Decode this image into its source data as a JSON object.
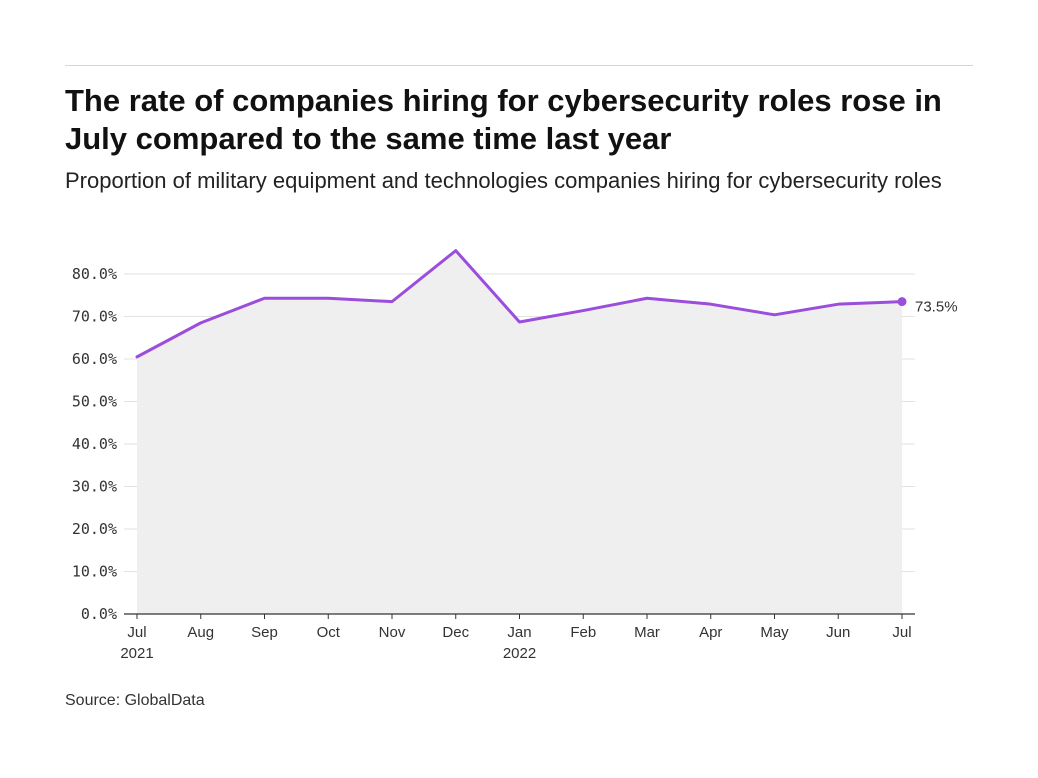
{
  "title": "The rate of companies hiring for cybersecurity roles rose in July compared to the same time last year",
  "subtitle": "Proportion of military equipment and technologies companies hiring for cybersecurity roles",
  "source": "Source: GlobalData",
  "colors": {
    "line": "#9b4ddb",
    "area": "#efefef",
    "grid": "#e2e2e2",
    "axis": "#333333"
  },
  "chart_data": {
    "type": "area",
    "x": [
      "Jul 2021",
      "Aug 2021",
      "Sep 2021",
      "Oct 2021",
      "Nov 2021",
      "Dec 2021",
      "Jan 2022",
      "Feb 2022",
      "Mar 2022",
      "Apr 2022",
      "May 2022",
      "Jun 2022",
      "Jul 2022"
    ],
    "tick_labels": [
      {
        "month": "Jul",
        "year": "2021"
      },
      {
        "month": "Aug",
        "year": ""
      },
      {
        "month": "Sep",
        "year": ""
      },
      {
        "month": "Oct",
        "year": ""
      },
      {
        "month": "Nov",
        "year": ""
      },
      {
        "month": "Dec",
        "year": ""
      },
      {
        "month": "Jan",
        "year": "2022"
      },
      {
        "month": "Feb",
        "year": ""
      },
      {
        "month": "Mar",
        "year": ""
      },
      {
        "month": "Apr",
        "year": ""
      },
      {
        "month": "May",
        "year": ""
      },
      {
        "month": "Jun",
        "year": ""
      },
      {
        "month": "Jul",
        "year": ""
      }
    ],
    "values": [
      60.5,
      68.5,
      74.3,
      74.3,
      73.5,
      85.5,
      68.7,
      71.4,
      74.3,
      72.9,
      70.4,
      72.9,
      73.5
    ],
    "yticks": [
      "0.0%",
      "10.0%",
      "20.0%",
      "30.0%",
      "40.0%",
      "50.0%",
      "60.0%",
      "70.0%",
      "80.0%"
    ],
    "ylim": [
      0,
      80
    ],
    "grid": true,
    "end_label": "73.5%"
  }
}
